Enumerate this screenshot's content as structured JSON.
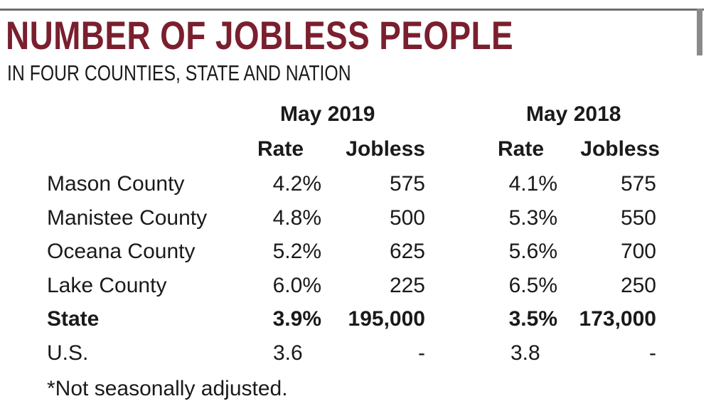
{
  "title": "NUMBER OF JOBLESS PEOPLE",
  "subtitle": "IN FOUR COUNTIES, STATE AND NATION",
  "periods": [
    "May 2019",
    "May 2018"
  ],
  "column_headers": {
    "rate": "Rate",
    "jobless": "Jobless"
  },
  "rows": [
    {
      "label": "Mason County",
      "rate_2019": "4.2%",
      "jobless_2019": "575",
      "rate_2018": "4.1%",
      "jobless_2018": "575",
      "bold": false
    },
    {
      "label": "Manistee County",
      "rate_2019": "4.8%",
      "jobless_2019": "500",
      "rate_2018": "5.3%",
      "jobless_2018": "550",
      "bold": false
    },
    {
      "label": "Oceana County",
      "rate_2019": "5.2%",
      "jobless_2019": "625",
      "rate_2018": "5.6%",
      "jobless_2018": "700",
      "bold": false
    },
    {
      "label": "Lake County",
      "rate_2019": "6.0%",
      "jobless_2019": "225",
      "rate_2018": "6.5%",
      "jobless_2018": "250",
      "bold": false
    },
    {
      "label": "State",
      "rate_2019": "3.9%",
      "jobless_2019": "195,000",
      "rate_2018": "3.5%",
      "jobless_2018": "173,000",
      "bold": true
    },
    {
      "label": "U.S.",
      "rate_2019": "3.6",
      "jobless_2019": "-",
      "rate_2018": "3.8",
      "jobless_2018": "-",
      "bold": false
    }
  ],
  "footnote": "*Not seasonally adjusted.",
  "colors": {
    "title": "#7a1f2e",
    "rule": "#6f6f6f",
    "text": "#1a1a1a"
  }
}
